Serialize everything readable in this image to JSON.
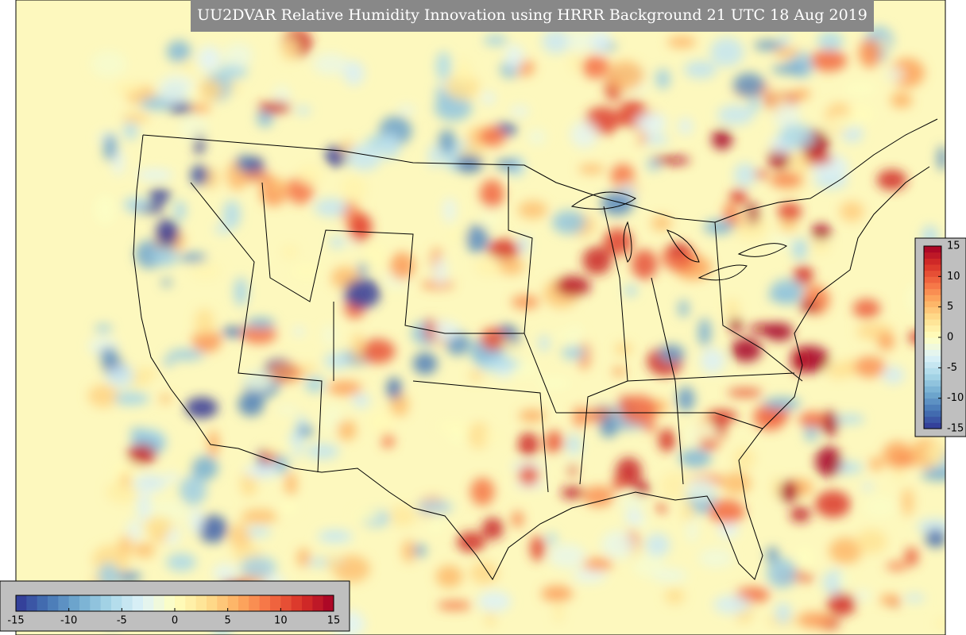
{
  "title": "UU2DVAR Relative Humidity Innovation using HRRR Background 21 UTC 18 Aug 2019",
  "colors": [
    "#313695",
    "#4575b4",
    "#74add1",
    "#abd9e9",
    "#e0f3f8",
    "#ffffbf",
    "#fee090",
    "#fdae61",
    "#f46d43",
    "#d73027",
    "#a50026"
  ],
  "colorbars": [
    {
      "lim": [
        -15,
        15
      ],
      "ticks": [
        15,
        10,
        5,
        0,
        -5,
        -10,
        -15
      ]
    },
    {
      "lim": [
        -15,
        15
      ],
      "ticks": [
        -15,
        -10,
        -5,
        0,
        5,
        10,
        15
      ]
    }
  ]
}
